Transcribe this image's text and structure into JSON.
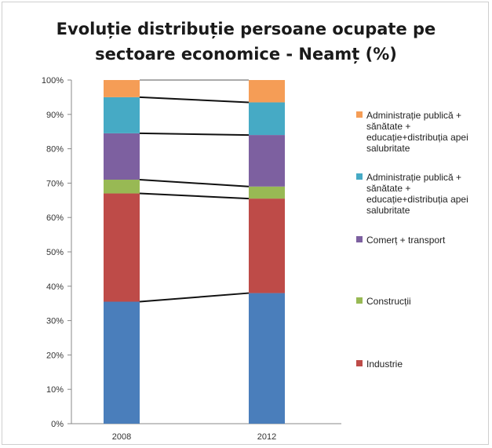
{
  "chart_data": {
    "type": "bar",
    "stacked": true,
    "title_line1": "Evoluție distribuție persoane ocupate pe",
    "title_line2": "sectoare economice - Neamț (%)",
    "categories": [
      "2008",
      "2012"
    ],
    "ylim": [
      0,
      100
    ],
    "yticks": [
      "0%",
      "10%",
      "20%",
      "30%",
      "40%",
      "50%",
      "60%",
      "70%",
      "80%",
      "90%",
      "100%"
    ],
    "grid": false,
    "legend_position": "right",
    "series": [
      {
        "values": [
          35.5,
          38.0
        ],
        "color": "#4a7ebb"
      },
      {
        "name": "Industrie",
        "values": [
          31.5,
          27.5
        ],
        "color": "#be4b48"
      },
      {
        "name": "Construcții",
        "values": [
          4.0,
          3.5
        ],
        "color": "#98b954"
      },
      {
        "name": "Comerț + transport",
        "values": [
          13.5,
          15.0
        ],
        "color": "#7d60a0"
      },
      {
        "name": "Administrație publică + sănătate + educație+distribuția apei salubritate",
        "values": [
          10.5,
          9.5
        ],
        "color": "#46aac5"
      },
      {
        "name": "Administrație publică + sănătate + educație+distribuția apei salubritate",
        "values": [
          5.0,
          6.5
        ],
        "color": "#f59d56"
      }
    ]
  }
}
